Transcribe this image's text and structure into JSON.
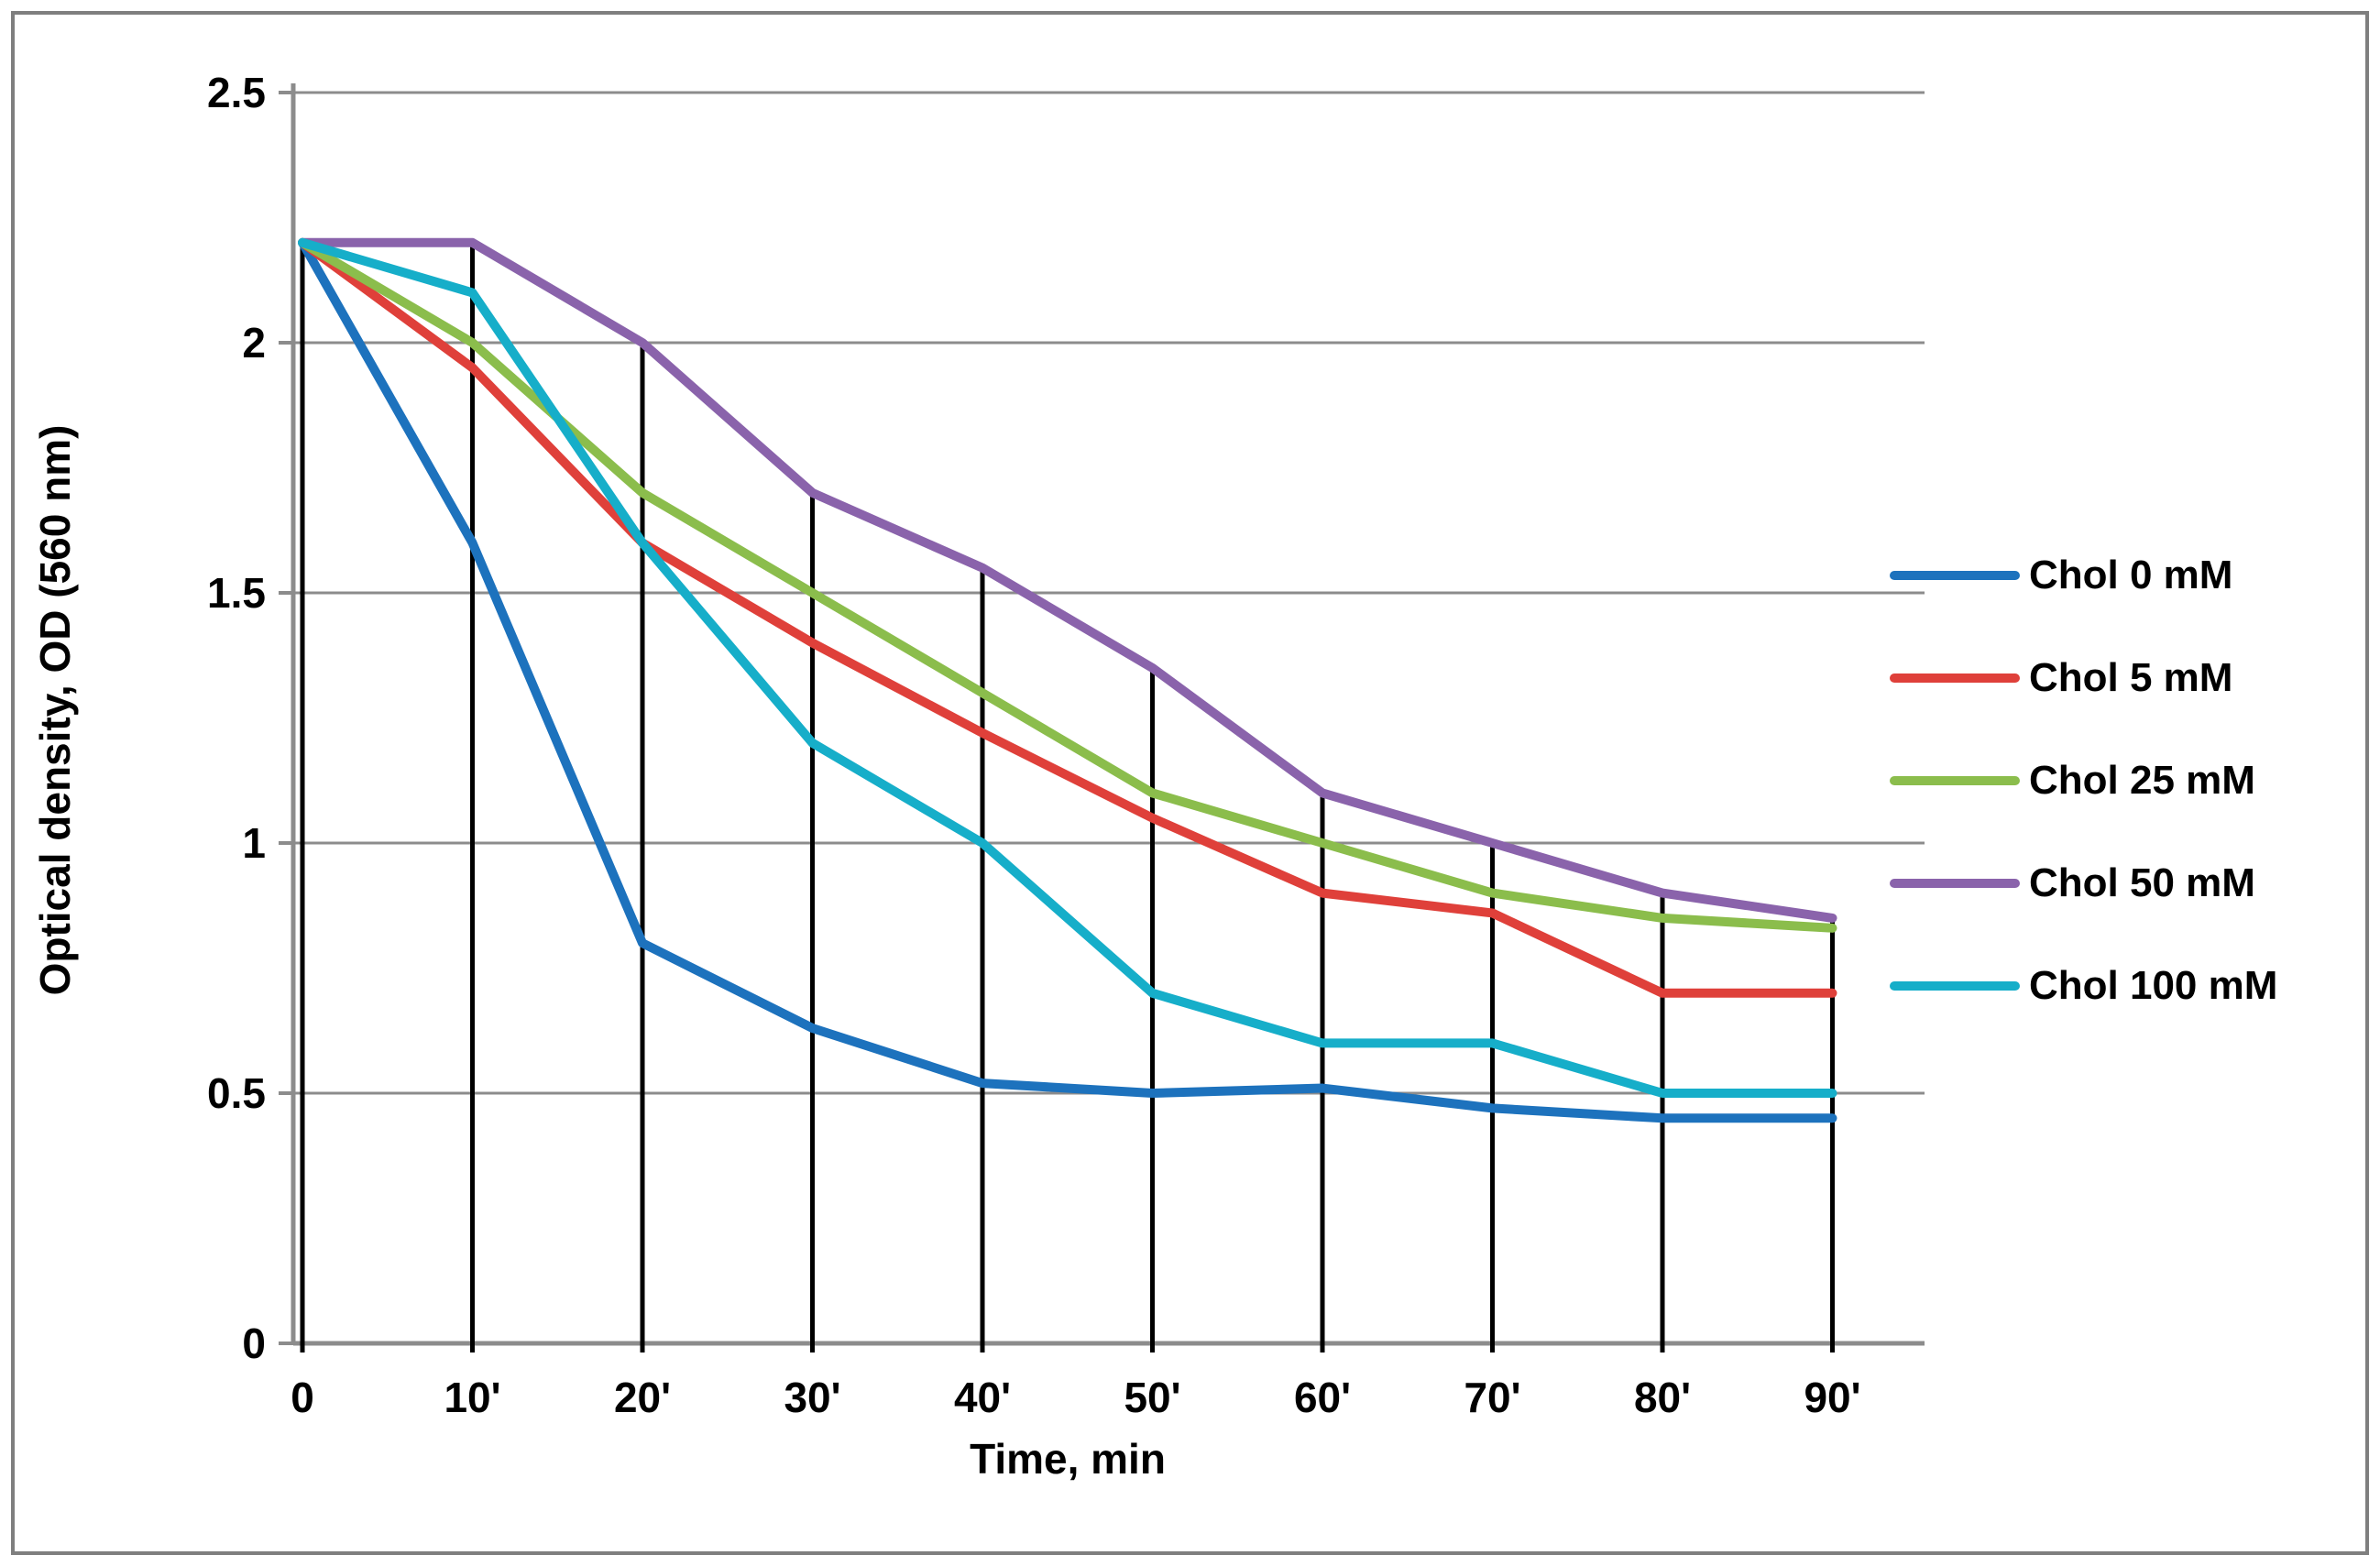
{
  "figure": {
    "background": "#ffffff",
    "border_color": "#7f7f7f"
  },
  "chart_data": {
    "type": "line",
    "title": "",
    "xlabel": "Time, min",
    "ylabel": "Optical density, OD (560 nm)",
    "x_tick_labels": [
      "0",
      "10'",
      "20'",
      "30'",
      "40'",
      "50'",
      "60'",
      "70'",
      "80'",
      "90'"
    ],
    "x_values_min": [
      0,
      10,
      20,
      30,
      40,
      50,
      60,
      70,
      80,
      90
    ],
    "y_tick_labels": [
      "0",
      "0.5",
      "1",
      "1.5",
      "2",
      "2.5"
    ],
    "y_tick_values": [
      0,
      0.5,
      1,
      1.5,
      2,
      2.5
    ],
    "ylim": [
      0,
      2.5
    ],
    "grid": true,
    "gridline_color": "#8c8c8c",
    "axis_color": "#8c8c8c",
    "drop_line_color": "#000000",
    "drop_lines": "vertical black line at every x tick from the x-axis up to the Chol 50 mM series",
    "legend_position": "right",
    "series": [
      {
        "name": "Chol 0 mM",
        "color": "#1d72bd",
        "values": [
          2.2,
          1.6,
          0.8,
          0.63,
          0.52,
          0.5,
          0.51,
          0.47,
          0.45,
          0.45
        ]
      },
      {
        "name": "Chol 5 mM",
        "color": "#df403a",
        "values": [
          2.2,
          1.95,
          1.6,
          1.4,
          1.22,
          1.05,
          0.9,
          0.86,
          0.7,
          0.7
        ]
      },
      {
        "name": "Chol 25 mM",
        "color": "#8bbd4c",
        "values": [
          2.2,
          2.0,
          1.7,
          1.5,
          1.3,
          1.1,
          1.0,
          0.9,
          0.85,
          0.83
        ]
      },
      {
        "name": "Chol 50 mM",
        "color": "#8a63ab",
        "values": [
          2.2,
          2.2,
          2.0,
          1.7,
          1.55,
          1.35,
          1.1,
          1.0,
          0.9,
          0.85
        ]
      },
      {
        "name": "Chol 100 mM",
        "color": "#16aec9",
        "values": [
          2.2,
          2.1,
          1.6,
          1.2,
          1.0,
          0.7,
          0.6,
          0.6,
          0.5,
          0.5
        ]
      }
    ]
  }
}
